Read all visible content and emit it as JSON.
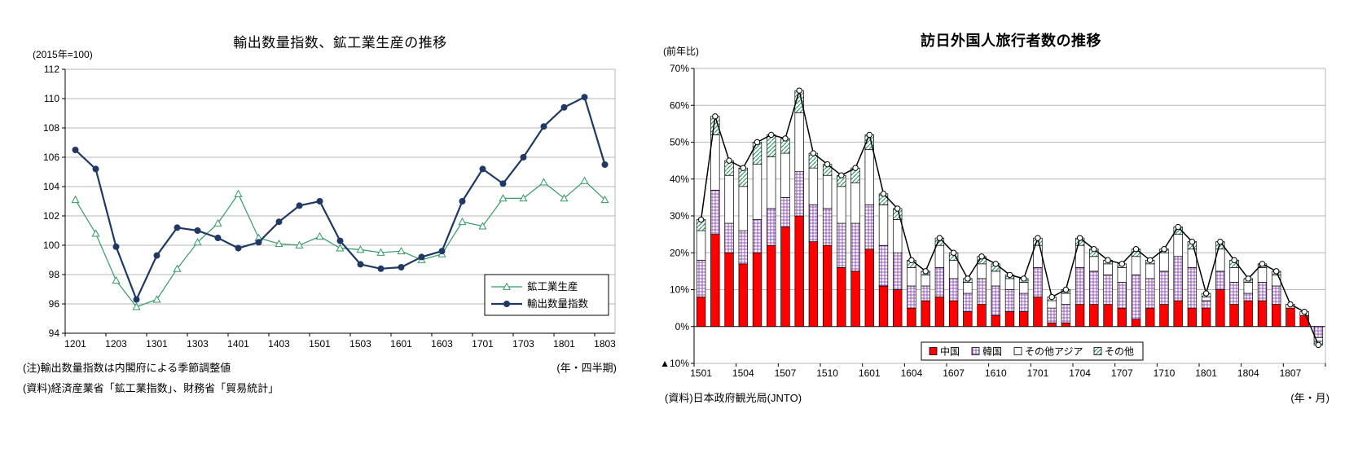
{
  "left_chart": {
    "title": "輸出数量指数、鉱工業生産の推移",
    "y_unit": "(2015年=100)",
    "x_unit": "(年・四半期)",
    "note1": "(注)輸出数量指数は内閣府による季節調整値",
    "note2": "(資料)経済産業省「鉱工業指数」、財務省「貿易統計」"
  },
  "right_chart": {
    "title": "訪日外国人旅行者数の推移",
    "y_unit": "(前年比)",
    "x_unit": "(年・月)",
    "note": "(資料)日本政府観光局(JNTO)"
  },
  "chart_data": [
    {
      "type": "line",
      "title": "輸出数量指数、鉱工業生産の推移",
      "ylabel": "(2015年=100)",
      "xlabel": "(年・四半期)",
      "ylim": [
        94,
        112
      ],
      "ytick_step": 2,
      "grid": true,
      "legend_position": "inside-bottom-right",
      "categories": [
        "1201",
        "1202",
        "1203",
        "1204",
        "1301",
        "1302",
        "1303",
        "1304",
        "1401",
        "1402",
        "1403",
        "1404",
        "1501",
        "1502",
        "1503",
        "1504",
        "1601",
        "1602",
        "1603",
        "1604",
        "1701",
        "1702",
        "1703",
        "1704",
        "1801",
        "1802",
        "1803"
      ],
      "x_tick_labels": [
        "1201",
        "1203",
        "1301",
        "1303",
        "1401",
        "1403",
        "1501",
        "1503",
        "1601",
        "1603",
        "1701",
        "1703",
        "1801",
        "1803"
      ],
      "series": [
        {
          "name": "鉱工業生産",
          "color": "#339966",
          "marker": "triangle-open",
          "values": [
            103.1,
            100.8,
            97.6,
            95.8,
            96.3,
            98.4,
            100.2,
            101.5,
            103.5,
            100.5,
            100.1,
            100.0,
            100.6,
            99.8,
            99.7,
            99.5,
            99.6,
            99.0,
            99.4,
            101.6,
            101.3,
            103.2,
            103.2,
            104.3,
            103.2,
            104.4,
            103.1
          ]
        },
        {
          "name": "輸出数量指数",
          "color": "#1F3864",
          "marker": "circle-filled",
          "values": [
            106.5,
            105.2,
            99.9,
            96.3,
            99.3,
            101.2,
            101.0,
            100.5,
            99.8,
            100.2,
            101.6,
            102.7,
            103.0,
            100.3,
            98.7,
            98.4,
            98.5,
            99.2,
            99.6,
            103.0,
            105.2,
            104.2,
            106.0,
            108.1,
            109.4,
            110.1,
            105.5
          ]
        }
      ]
    },
    {
      "type": "bar",
      "stacked": true,
      "title": "訪日外国人旅行者数の推移",
      "ylabel": "(前年比)",
      "xlabel": "(年・月)",
      "ylim": [
        -10,
        70
      ],
      "ytick_step": 10,
      "ytick_labels": [
        "▲10%",
        "0%",
        "10%",
        "20%",
        "30%",
        "40%",
        "50%",
        "60%",
        "70%"
      ],
      "grid": true,
      "legend_position": "inside-bottom",
      "categories": [
        "1501",
        "1502",
        "1503",
        "1504",
        "1505",
        "1506",
        "1507",
        "1508",
        "1509",
        "1510",
        "1511",
        "1512",
        "1601",
        "1602",
        "1603",
        "1604",
        "1605",
        "1606",
        "1607",
        "1608",
        "1609",
        "1610",
        "1611",
        "1612",
        "1701",
        "1702",
        "1703",
        "1704",
        "1705",
        "1706",
        "1707",
        "1708",
        "1709",
        "1710",
        "1711",
        "1712",
        "1801",
        "1802",
        "1803",
        "1804",
        "1805",
        "1806",
        "1807",
        "1808",
        "1809"
      ],
      "x_tick_labels": [
        "1501",
        "1504",
        "1507",
        "1510",
        "1601",
        "1604",
        "1607",
        "1610",
        "1701",
        "1704",
        "1707",
        "1710",
        "1801",
        "1804",
        "1807"
      ],
      "series": [
        {
          "name": "中国",
          "fill_style": "solid",
          "color": "#FF0000",
          "values": [
            8,
            25,
            20,
            17,
            20,
            22,
            27,
            30,
            23,
            22,
            16,
            15,
            21,
            11,
            10,
            5,
            7,
            8,
            7,
            4,
            6,
            3,
            4,
            4,
            8,
            1,
            1,
            6,
            6,
            6,
            5,
            2,
            5,
            6,
            7,
            5,
            5,
            10,
            6,
            7,
            7,
            6,
            5,
            3,
            0
          ]
        },
        {
          "name": "韓国",
          "fill_style": "grid",
          "color": "#9955BB",
          "values": [
            10,
            12,
            8,
            9,
            9,
            10,
            8,
            12,
            10,
            10,
            12,
            13,
            12,
            11,
            10,
            6,
            4,
            8,
            6,
            5,
            7,
            8,
            6,
            5,
            8,
            4,
            5,
            10,
            9,
            8,
            7,
            12,
            8,
            9,
            12,
            11,
            2,
            5,
            6,
            2,
            5,
            5,
            0,
            0,
            -3
          ]
        },
        {
          "name": "その他アジア",
          "fill_style": "white",
          "color": "#FFFFFF",
          "values": [
            8,
            15,
            13,
            12,
            15,
            14,
            12,
            16,
            10,
            9,
            10,
            11,
            15,
            11,
            9,
            5,
            3,
            6,
            5,
            3,
            4,
            4,
            3,
            3,
            6,
            2,
            3,
            6,
            4,
            3,
            4,
            5,
            4,
            5,
            6,
            5,
            1,
            6,
            4,
            3,
            4,
            3,
            1,
            1,
            -1
          ]
        },
        {
          "name": "その他",
          "fill_style": "hatch",
          "color": "#339966",
          "values": [
            3,
            5,
            4,
            5,
            6,
            6,
            4,
            6,
            4,
            3,
            3,
            4,
            4,
            3,
            3,
            2,
            1,
            2,
            2,
            1,
            2,
            2,
            1,
            1,
            2,
            1,
            1,
            2,
            2,
            1,
            1,
            2,
            1,
            1,
            2,
            2,
            1,
            2,
            2,
            1,
            1,
            1,
            0,
            0,
            -1
          ]
        }
      ],
      "line": {
        "color": "#000000",
        "marker": "circle-open",
        "values": [
          29,
          57,
          45,
          43,
          50,
          52,
          51,
          64,
          47,
          44,
          41,
          43,
          52,
          36,
          32,
          18,
          15,
          24,
          20,
          13,
          19,
          17,
          14,
          13,
          24,
          8,
          10,
          24,
          21,
          18,
          17,
          21,
          18,
          21,
          27,
          23,
          9,
          23,
          18,
          13,
          17,
          15,
          6,
          4,
          -5
        ]
      }
    }
  ]
}
